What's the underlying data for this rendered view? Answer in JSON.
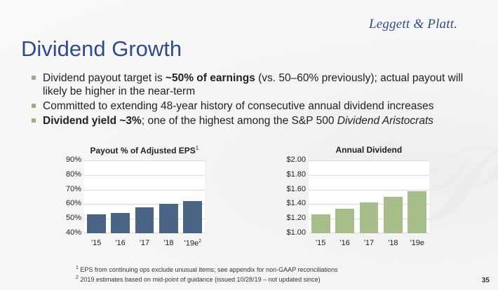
{
  "brand": {
    "logo_text": "Leggett & Platt.",
    "accent": "#2e4d8a",
    "bullet_color": "#9bb07c"
  },
  "slide": {
    "title": "Dividend Growth",
    "page_number": "35",
    "bullets": [
      {
        "parts": [
          {
            "text": "Dividend payout target is ",
            "style": "normal"
          },
          {
            "text": "~50% of earnings",
            "style": "bold"
          },
          {
            "text": " (vs. 50–60% previously); actual payout will likely be higher in the near-term",
            "style": "normal"
          }
        ]
      },
      {
        "parts": [
          {
            "text": "Committed to extending 48-year history of consecutive annual dividend increases",
            "style": "normal"
          }
        ]
      },
      {
        "parts": [
          {
            "text": "Dividend yield ~3%",
            "style": "bold"
          },
          {
            "text": "; one of the highest among the S&P 500 ",
            "style": "normal"
          },
          {
            "text": "Dividend Aristocrats",
            "style": "italic"
          }
        ]
      }
    ],
    "footnotes": [
      {
        "marker": "1",
        "text": "EPS from continuing ops exclude unusual items; see appendix for non-GAAP reconciliations"
      },
      {
        "marker": "2",
        "text": "2019 estimates based on mid-point of guidance (issued 10/28/19 – not updated since)"
      }
    ]
  },
  "chart_data": [
    {
      "type": "bar",
      "title": "Payout % of Adjusted EPS",
      "title_marker": "1",
      "categories": [
        "'15",
        "'16",
        "'17",
        "'18",
        "'19e"
      ],
      "last_category_marker": "2",
      "values": [
        53,
        54,
        58,
        60,
        62
      ],
      "ylim": [
        40,
        90
      ],
      "ytick_values": [
        40,
        50,
        60,
        70,
        80,
        90
      ],
      "ytick_labels": [
        "40%",
        "50%",
        "60%",
        "70%",
        "80%",
        "90%"
      ],
      "bar_color": "#4a6485",
      "grid": true
    },
    {
      "type": "bar",
      "title": "Annual Dividend",
      "title_marker": "",
      "categories": [
        "'15",
        "'16",
        "'17",
        "'18",
        "'19e"
      ],
      "last_category_marker": "",
      "values": [
        1.26,
        1.34,
        1.42,
        1.5,
        1.58
      ],
      "ylim": [
        1.0,
        2.0
      ],
      "ytick_values": [
        1.0,
        1.2,
        1.4,
        1.6,
        1.8,
        2.0
      ],
      "ytick_labels": [
        "$1.00",
        "$1.20",
        "$1.40",
        "$1.60",
        "$1.80",
        "$2.00"
      ],
      "bar_color": "#a7bd8a",
      "grid": true
    }
  ]
}
